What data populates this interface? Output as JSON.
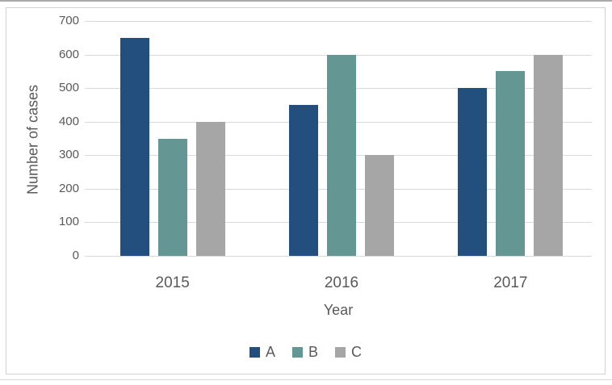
{
  "chart_data": {
    "type": "bar",
    "title": "",
    "categories": [
      "2015",
      "2016",
      "2017"
    ],
    "series": [
      {
        "name": "A",
        "color": "#224f7e",
        "values": [
          650,
          450,
          500
        ]
      },
      {
        "name": "B",
        "color": "#649694",
        "values": [
          350,
          600,
          550
        ]
      },
      {
        "name": "C",
        "color": "#a6a6a6",
        "values": [
          400,
          300,
          600
        ]
      }
    ],
    "xlabel": "Year",
    "ylabel": "Number of cases",
    "ylim": [
      0,
      700
    ],
    "yticks": [
      0,
      100,
      200,
      300,
      400,
      500,
      600,
      700
    ],
    "grid": true,
    "legend_position": "bottom"
  },
  "style": {
    "text_color": "#595959",
    "gridline_color": "#d9d9d9",
    "chart_border_color": "#d2d2d2",
    "background_color": "#ffffff"
  }
}
